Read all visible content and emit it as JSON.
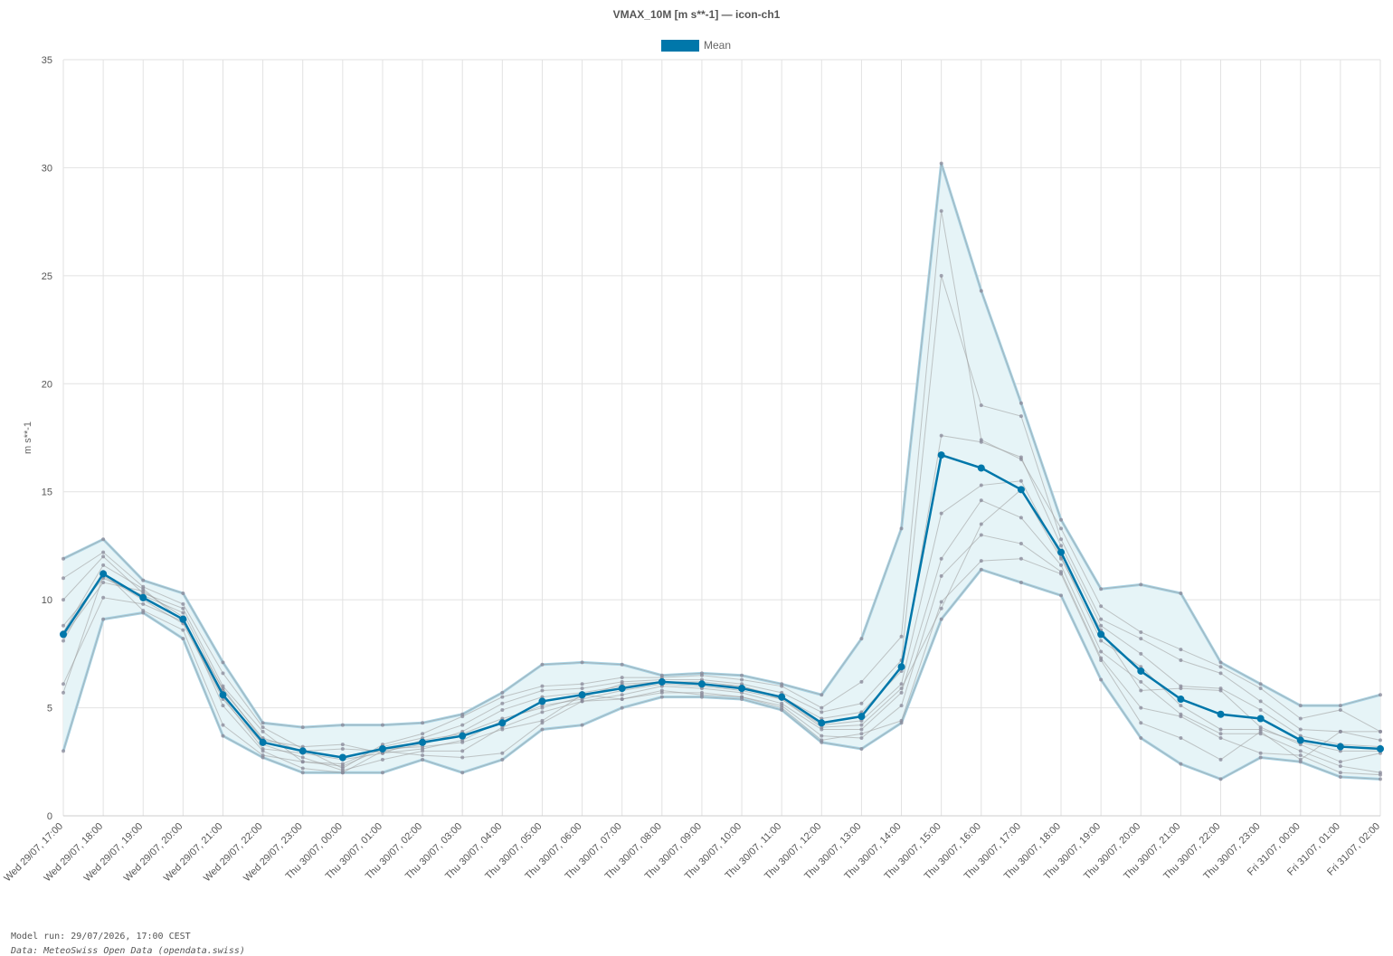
{
  "chart_data": {
    "type": "line",
    "title": "VMAX_10M [m s**-1] — icon-ch1",
    "ylabel": "m s**-1",
    "ylim": [
      0,
      35
    ],
    "yticks": [
      0,
      5,
      10,
      15,
      20,
      25,
      30,
      35
    ],
    "grid": true,
    "legend": {
      "position": "top-center",
      "entries": [
        "Mean"
      ]
    },
    "x": [
      "Wed 29/07, 17:00",
      "Wed 29/07, 18:00",
      "Wed 29/07, 19:00",
      "Wed 29/07, 20:00",
      "Wed 29/07, 21:00",
      "Wed 29/07, 22:00",
      "Wed 29/07, 23:00",
      "Thu 30/07, 00:00",
      "Thu 30/07, 01:00",
      "Thu 30/07, 02:00",
      "Thu 30/07, 03:00",
      "Thu 30/07, 04:00",
      "Thu 30/07, 05:00",
      "Thu 30/07, 06:00",
      "Thu 30/07, 07:00",
      "Thu 30/07, 08:00",
      "Thu 30/07, 09:00",
      "Thu 30/07, 10:00",
      "Thu 30/07, 11:00",
      "Thu 30/07, 12:00",
      "Thu 30/07, 13:00",
      "Thu 30/07, 14:00",
      "Thu 30/07, 15:00",
      "Thu 30/07, 16:00",
      "Thu 30/07, 17:00",
      "Thu 30/07, 18:00",
      "Thu 30/07, 19:00",
      "Thu 30/07, 20:00",
      "Thu 30/07, 21:00",
      "Thu 30/07, 22:00",
      "Thu 30/07, 23:00",
      "Fri 31/07, 00:00",
      "Fri 31/07, 01:00",
      "Fri 31/07, 02:00"
    ],
    "band": {
      "upper": [
        11.9,
        12.8,
        10.9,
        10.3,
        7.1,
        4.3,
        4.1,
        4.2,
        4.2,
        4.3,
        4.7,
        5.7,
        7.0,
        7.1,
        7.0,
        6.5,
        6.6,
        6.5,
        6.1,
        5.6,
        8.2,
        13.3,
        30.2,
        24.3,
        19.1,
        13.7,
        10.5,
        10.7,
        10.3,
        7.1,
        6.1,
        5.1,
        5.1,
        5.6
      ],
      "lower": [
        3.0,
        9.1,
        9.4,
        8.2,
        3.7,
        2.7,
        2.0,
        2.0,
        2.0,
        2.6,
        2.0,
        2.6,
        4.0,
        4.2,
        5.0,
        5.5,
        5.5,
        5.4,
        4.9,
        3.4,
        3.1,
        4.3,
        9.1,
        11.4,
        10.8,
        10.2,
        6.3,
        3.6,
        2.4,
        1.7,
        2.7,
        2.5,
        1.8,
        1.7
      ]
    },
    "mean": [
      8.4,
      11.2,
      10.1,
      9.1,
      5.6,
      3.4,
      3.0,
      2.7,
      3.1,
      3.4,
      3.7,
      4.3,
      5.3,
      5.6,
      5.9,
      6.2,
      6.1,
      5.9,
      5.5,
      4.3,
      4.6,
      6.9,
      16.7,
      16.1,
      15.1,
      12.2,
      8.4,
      6.7,
      5.4,
      4.7,
      4.5,
      3.5,
      3.2,
      3.1
    ],
    "members": [
      [
        11.9,
        12.8,
        10.9,
        10.3,
        7.1,
        4.3,
        4.1,
        4.2,
        4.2,
        4.3,
        4.7,
        5.7,
        7.0,
        7.1,
        7.0,
        6.5,
        6.6,
        6.5,
        6.1,
        5.6,
        8.2,
        13.3,
        30.2,
        24.3,
        19.1,
        13.7,
        10.5,
        10.7,
        10.3,
        7.1,
        6.1,
        5.1,
        5.1,
        5.6
      ],
      [
        3.0,
        9.1,
        9.4,
        8.2,
        3.7,
        2.7,
        2.0,
        2.0,
        2.0,
        2.6,
        2.0,
        2.6,
        4.0,
        4.2,
        5.0,
        5.5,
        5.5,
        5.4,
        4.9,
        3.4,
        3.1,
        4.3,
        9.1,
        11.4,
        10.8,
        10.2,
        6.3,
        3.6,
        2.4,
        1.7,
        2.7,
        2.5,
        1.8,
        1.7
      ],
      [
        11.0,
        12.2,
        10.6,
        9.8,
        6.6,
        4.1,
        3.1,
        2.2,
        3.3,
        3.8,
        4.6,
        5.5,
        6.0,
        6.1,
        6.4,
        6.4,
        6.5,
        6.3,
        6.0,
        5.0,
        6.2,
        8.3,
        28.0,
        17.4,
        16.5,
        13.3,
        9.7,
        8.5,
        7.7,
        6.9,
        5.9,
        4.5,
        4.9,
        3.9
      ],
      [
        10.0,
        12.0,
        10.3,
        9.6,
        6.0,
        3.9,
        2.5,
        2.4,
        3.2,
        3.6,
        4.2,
        5.2,
        5.8,
        5.9,
        6.2,
        6.3,
        6.3,
        6.1,
        5.7,
        4.8,
        5.2,
        7.2,
        25.0,
        19.0,
        18.5,
        12.8,
        9.1,
        8.2,
        7.2,
        6.6,
        5.3,
        4.0,
        3.9,
        3.5
      ],
      [
        8.8,
        11.0,
        10.2,
        9.4,
        5.8,
        3.6,
        3.0,
        3.1,
        3.0,
        3.3,
        3.9,
        4.9,
        5.5,
        5.7,
        6.0,
        6.2,
        6.1,
        6.0,
        5.5,
        4.5,
        4.8,
        6.7,
        17.6,
        17.3,
        16.6,
        12.5,
        8.8,
        7.5,
        6.0,
        5.9,
        4.9,
        3.7,
        3.3,
        3.2
      ],
      [
        6.1,
        10.1,
        9.8,
        9.0,
        5.5,
        3.1,
        2.9,
        2.6,
        2.9,
        3.1,
        3.5,
        4.4,
        5.1,
        5.4,
        5.8,
        6.1,
        6.0,
        5.8,
        5.4,
        4.2,
        4.4,
        6.1,
        14.0,
        15.3,
        15.5,
        12.0,
        8.1,
        6.9,
        5.1,
        4.0,
        4.0,
        3.4,
        3.0,
        3.0
      ],
      [
        5.7,
        11.1,
        10.0,
        8.9,
        5.4,
        3.3,
        2.7,
        2.1,
        2.6,
        3.0,
        3.0,
        4.1,
        4.8,
        5.3,
        5.6,
        6.0,
        5.9,
        5.7,
        5.2,
        4.0,
        4.0,
        5.7,
        11.9,
        14.6,
        13.8,
        11.6,
        7.6,
        6.2,
        4.7,
        3.8,
        3.8,
        3.0,
        2.3,
        2.0
      ],
      [
        8.1,
        11.3,
        9.5,
        8.6,
        4.2,
        2.8,
        2.5,
        2.3,
        3.1,
        3.2,
        3.4,
        4.0,
        4.4,
        5.6,
        5.4,
        5.8,
        5.6,
        5.5,
        5.1,
        3.7,
        3.6,
        5.1,
        11.1,
        13.0,
        12.6,
        11.3,
        7.3,
        5.0,
        4.6,
        3.6,
        2.9,
        2.8,
        2.0,
        1.9
      ],
      [
        8.3,
        10.8,
        10.4,
        9.2,
        5.1,
        3.0,
        2.2,
        2.0,
        3.0,
        2.8,
        2.7,
        2.9,
        4.3,
        5.3,
        5.4,
        5.7,
        5.7,
        5.5,
        5.0,
        3.5,
        3.8,
        4.4,
        9.9,
        11.8,
        11.9,
        11.2,
        7.2,
        4.3,
        3.6,
        2.6,
        3.9,
        2.6,
        3.9,
        3.9
      ],
      [
        8.5,
        11.6,
        10.5,
        9.0,
        5.9,
        3.5,
        3.2,
        3.3,
        2.9,
        3.5,
        3.8,
        4.5,
        5.0,
        5.5,
        6.1,
        6.2,
        6.2,
        6.0,
        5.4,
        4.1,
        4.2,
        5.9,
        9.6,
        13.5,
        15.1,
        11.9,
        8.6,
        5.8,
        5.9,
        5.8,
        4.1,
        3.3,
        2.5,
        2.9
      ]
    ]
  },
  "footer": {
    "model_run": "Model run: 29/07/2026, 17:00 CEST",
    "source": "Data: MeteoSwiss Open Data (opendata.swiss)"
  },
  "colors": {
    "mean": "#0077aa",
    "band_fill": "#e6f4f7",
    "band_edge": "#a9d3e4",
    "member": "#8a8a9a",
    "grid": "#e2e2e2",
    "axis_text": "#555555"
  }
}
